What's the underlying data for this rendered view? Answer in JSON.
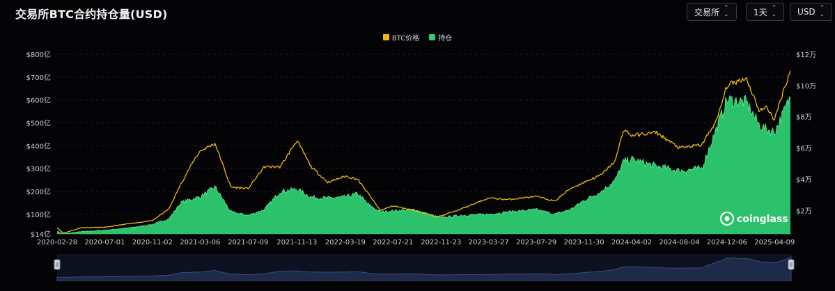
{
  "header": {
    "title": "交易所BTC合约持仓量(USD)"
  },
  "controls": {
    "exchange": {
      "label": "交易所"
    },
    "interval": {
      "label": "1天"
    },
    "currency": {
      "label": "USD"
    }
  },
  "watermark": "coinglass",
  "colors": {
    "price": "#f0b90b",
    "oi": "#2ecc71",
    "oi_edge": "#4ee08a",
    "navigator": "#1e2a4a",
    "background": "#040406"
  },
  "chart_data": {
    "type": "area",
    "legend": [
      "BTC价格",
      "持仓"
    ],
    "legend_position": "top-center",
    "grid": true,
    "x_ticks": [
      "2020-02-28",
      "2020-07-01",
      "2020-11-02",
      "2021-03-06",
      "2021-07-09",
      "2021-11-13",
      "2022-03-19",
      "2022-07-21",
      "2022-11-23",
      "2023-03-27",
      "2023-07-29",
      "2023-11-30",
      "2024-04-02",
      "2024-08-04",
      "2024-12-06",
      "2025-04-09"
    ],
    "y_left": {
      "label": "",
      "ticks": [
        "$14亿",
        "$100亿",
        "$200亿",
        "$300亿",
        "$400亿",
        "$500亿",
        "$600亿",
        "$700亿",
        "$800亿"
      ],
      "tick_values": [
        14,
        100,
        200,
        300,
        400,
        500,
        600,
        700,
        800
      ],
      "range": [
        14,
        800
      ],
      "unit": "亿 USD"
    },
    "y_right": {
      "label": "",
      "ticks": [
        "$2万",
        "$4万",
        "$6万",
        "$8万",
        "$10万",
        "$12万"
      ],
      "tick_values": [
        2,
        4,
        6,
        8,
        10,
        12
      ],
      "range": [
        0.5,
        12
      ],
      "unit": "万 USD"
    },
    "series": [
      {
        "name": "持仓",
        "axis": "left",
        "x": [
          "2020-02-28",
          "2020-03-15",
          "2020-05-01",
          "2020-07-01",
          "2020-09-01",
          "2020-11-02",
          "2020-12-15",
          "2021-01-15",
          "2021-02-20",
          "2021-03-06",
          "2021-04-14",
          "2021-05-25",
          "2021-07-09",
          "2021-08-20",
          "2021-10-01",
          "2021-11-13",
          "2021-12-20",
          "2022-02-01",
          "2022-03-19",
          "2022-04-20",
          "2022-05-20",
          "2022-06-18",
          "2022-07-21",
          "2022-09-15",
          "2022-11-10",
          "2022-11-23",
          "2023-01-15",
          "2023-03-27",
          "2023-05-15",
          "2023-07-29",
          "2023-09-15",
          "2023-10-25",
          "2023-11-30",
          "2024-01-15",
          "2024-02-20",
          "2024-03-12",
          "2024-04-02",
          "2024-06-05",
          "2024-08-04",
          "2024-10-01",
          "2024-11-10",
          "2024-12-06",
          "2025-01-25",
          "2025-02-28",
          "2025-03-20",
          "2025-04-09",
          "2025-05-01",
          "2025-05-22"
        ],
        "values": [
          25,
          14,
          24,
          30,
          40,
          55,
          80,
          150,
          170,
          175,
          220,
          110,
          95,
          120,
          200,
          210,
          175,
          170,
          175,
          190,
          140,
          110,
          115,
          120,
          90,
          85,
          95,
          100,
          110,
          120,
          100,
          120,
          160,
          200,
          250,
          330,
          340,
          310,
          290,
          300,
          480,
          600,
          590,
          490,
          470,
          460,
          540,
          620
        ]
      },
      {
        "name": "BTC价格",
        "axis": "right",
        "x": [
          "2020-02-28",
          "2020-03-15",
          "2020-05-01",
          "2020-07-01",
          "2020-09-01",
          "2020-11-02",
          "2020-12-15",
          "2021-01-15",
          "2021-02-20",
          "2021-03-06",
          "2021-04-14",
          "2021-05-25",
          "2021-07-09",
          "2021-08-20",
          "2021-10-01",
          "2021-11-13",
          "2021-12-20",
          "2022-02-01",
          "2022-03-19",
          "2022-04-20",
          "2022-05-20",
          "2022-06-18",
          "2022-07-21",
          "2022-09-15",
          "2022-11-10",
          "2022-11-23",
          "2023-01-15",
          "2023-03-27",
          "2023-05-15",
          "2023-07-29",
          "2023-09-15",
          "2023-10-25",
          "2023-11-30",
          "2024-01-15",
          "2024-02-20",
          "2024-03-12",
          "2024-04-02",
          "2024-06-05",
          "2024-08-04",
          "2024-10-01",
          "2024-11-10",
          "2024-12-06",
          "2025-01-25",
          "2025-02-28",
          "2025-03-20",
          "2025-04-09",
          "2025-05-01",
          "2025-05-22"
        ],
        "values": [
          0.9,
          0.55,
          0.9,
          0.92,
          1.15,
          1.35,
          2.1,
          3.7,
          5.3,
          5.8,
          6.3,
          3.5,
          3.4,
          4.8,
          4.8,
          6.5,
          4.8,
          3.8,
          4.2,
          4.0,
          3.0,
          2.0,
          2.3,
          2.0,
          1.6,
          1.65,
          2.1,
          2.8,
          2.7,
          2.9,
          2.6,
          3.4,
          3.8,
          4.3,
          5.2,
          7.2,
          6.8,
          7.0,
          6.0,
          6.2,
          7.8,
          10.0,
          10.5,
          8.4,
          8.6,
          7.8,
          9.6,
          11.1
        ]
      }
    ]
  }
}
